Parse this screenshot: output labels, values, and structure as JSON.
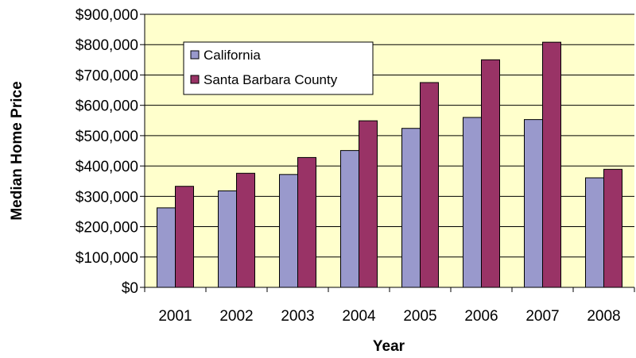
{
  "chart_data": {
    "type": "bar",
    "title": "",
    "xlabel": "Year",
    "ylabel": "Median Home Price",
    "categories": [
      "2001",
      "2002",
      "2003",
      "2004",
      "2005",
      "2006",
      "2007",
      "2008"
    ],
    "series": [
      {
        "name": "California",
        "color": "#9999cc",
        "values": [
          262000,
          318000,
          372000,
          451000,
          524000,
          560000,
          553000,
          361000
        ]
      },
      {
        "name": "Santa Barbara County",
        "color": "#993366",
        "values": [
          333000,
          376000,
          428000,
          549000,
          675000,
          750000,
          808000,
          389000
        ]
      }
    ],
    "ylim": [
      0,
      900000
    ],
    "yticks": [
      0,
      100000,
      200000,
      300000,
      400000,
      500000,
      600000,
      700000,
      800000,
      900000
    ],
    "ytick_labels": [
      "$0",
      "$100,000",
      "$200,000",
      "$300,000",
      "$400,000",
      "$500,000",
      "$600,000",
      "$700,000",
      "$800,000",
      "$900,000"
    ],
    "plot_background": "#ffffcc",
    "grid": true,
    "legend_position": "top-left"
  }
}
